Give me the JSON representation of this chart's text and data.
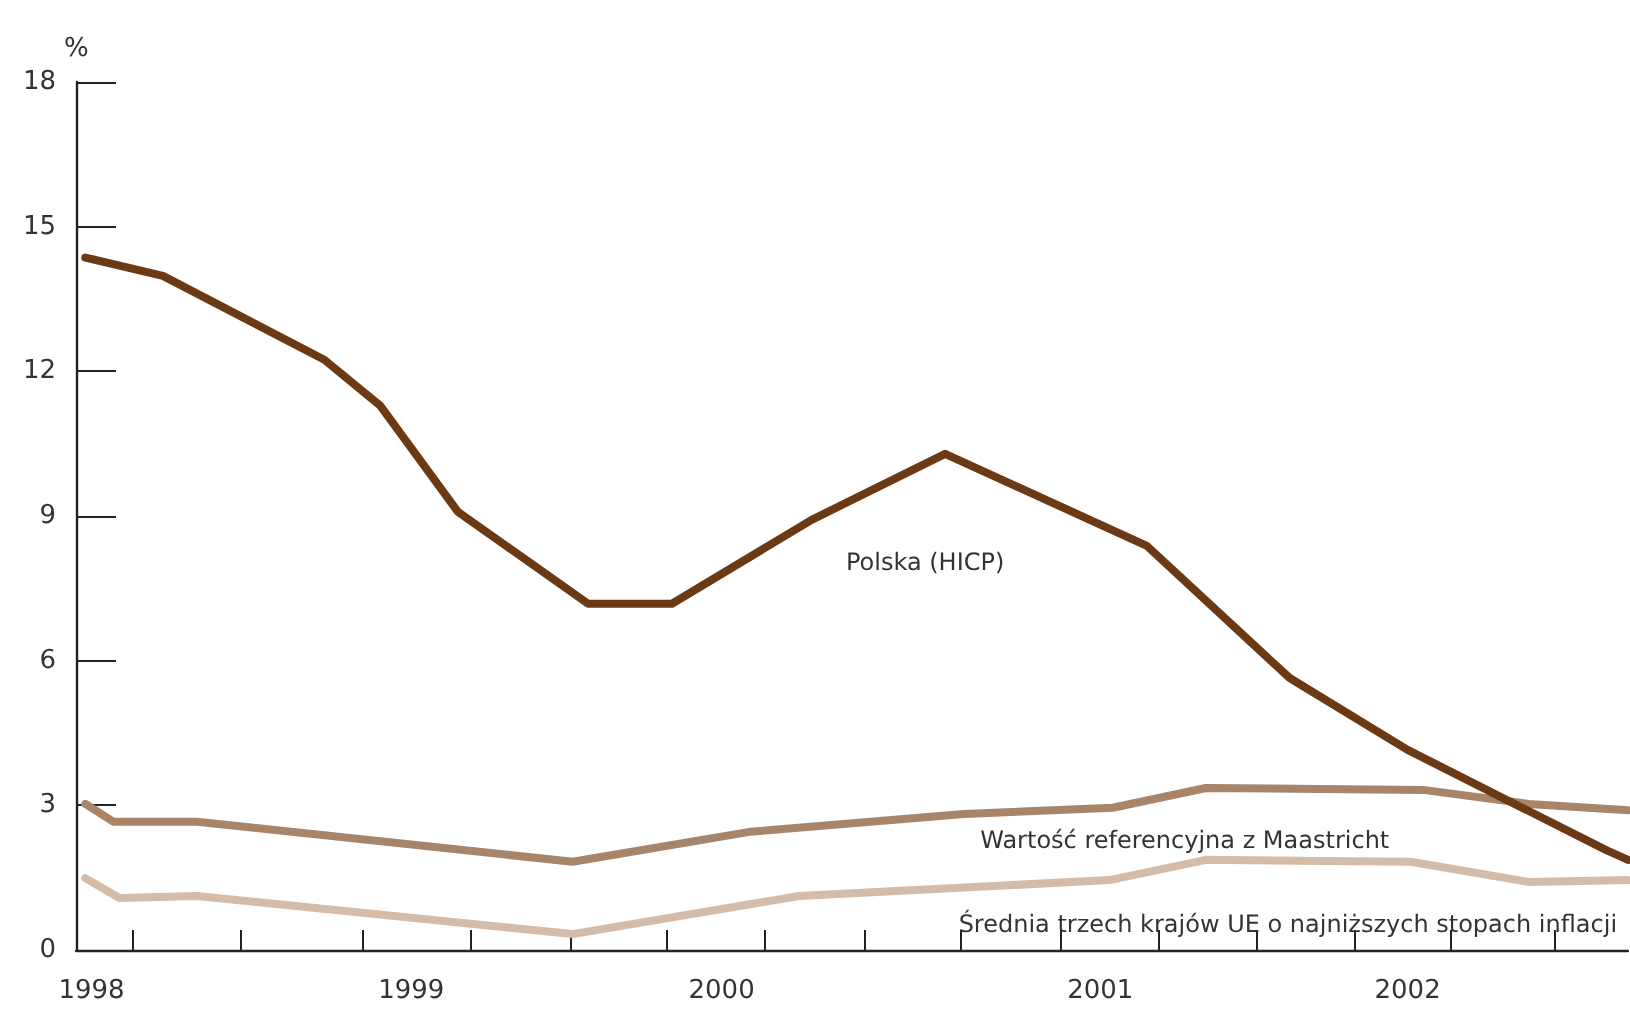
{
  "chart_data": {
    "type": "line",
    "ylabel": "%",
    "xlim": [
      1998,
      2003
    ],
    "xticks": [
      {
        "value": 1998.05,
        "label": "1998"
      },
      {
        "value": 1998.18,
        "label": null
      },
      {
        "value": 1998.53,
        "label": null
      },
      {
        "value": 1998.92,
        "label": null
      },
      {
        "value": 1999.08,
        "label": "1999"
      },
      {
        "value": 1999.27,
        "label": null
      },
      {
        "value": 1999.59,
        "label": null
      },
      {
        "value": 1999.9,
        "label": null
      },
      {
        "value": 2000.08,
        "label": "2000"
      },
      {
        "value": 2000.22,
        "label": null
      },
      {
        "value": 2000.54,
        "label": null
      },
      {
        "value": 2000.85,
        "label": null
      },
      {
        "value": 2001.17,
        "label": null
      },
      {
        "value": 2001.3,
        "label": "2001"
      },
      {
        "value": 2001.49,
        "label": null
      },
      {
        "value": 2001.8,
        "label": null
      },
      {
        "value": 2002.12,
        "label": null
      },
      {
        "value": 2002.29,
        "label": "2002"
      },
      {
        "value": 2002.43,
        "label": null
      },
      {
        "value": 2002.76,
        "label": null
      }
    ],
    "ylim": [
      0,
      18
    ],
    "yticks": [
      0,
      3,
      6,
      9,
      12,
      15,
      18
    ],
    "grid": false,
    "legend": false,
    "marker": "none",
    "line_style": "solid",
    "series": [
      {
        "name": "Polska (HICP)",
        "color": "#6b3a14",
        "x": [
          1998.03,
          1998.28,
          1998.8,
          1998.98,
          1999.23,
          1999.65,
          1999.92,
          2000.37,
          2000.8,
          2001.45,
          2001.91,
          2002.29,
          2002.93,
          2003
        ],
        "values": [
          14.36,
          13.98,
          12.24,
          11.29,
          9.09,
          7.18,
          7.18,
          8.92,
          10.29,
          8.38,
          5.64,
          4.15,
          2.07,
          1.87
        ]
      },
      {
        "name": "Wartość referencyjna z Maastricht",
        "color": "#a88468",
        "x": [
          1998.03,
          1998.12,
          1998.39,
          1999.6,
          2000.17,
          2000.86,
          2001.34,
          2001.64,
          2002.34,
          2002.68,
          2003
        ],
        "values": [
          3.03,
          2.66,
          2.66,
          1.83,
          2.45,
          2.82,
          2.95,
          3.36,
          3.32,
          3.03,
          2.9
        ]
      },
      {
        "name": "Średnia trzech krajów UE o najniższych stopach inflacji",
        "color": "#d4bca8",
        "x": [
          1998.03,
          1998.14,
          1998.39,
          1999.6,
          2000.33,
          2001.33,
          2001.64,
          2002.3,
          2002.68,
          2003
        ],
        "values": [
          1.49,
          1.08,
          1.12,
          0.33,
          1.12,
          1.45,
          1.87,
          1.83,
          1.41,
          1.45
        ]
      }
    ]
  }
}
